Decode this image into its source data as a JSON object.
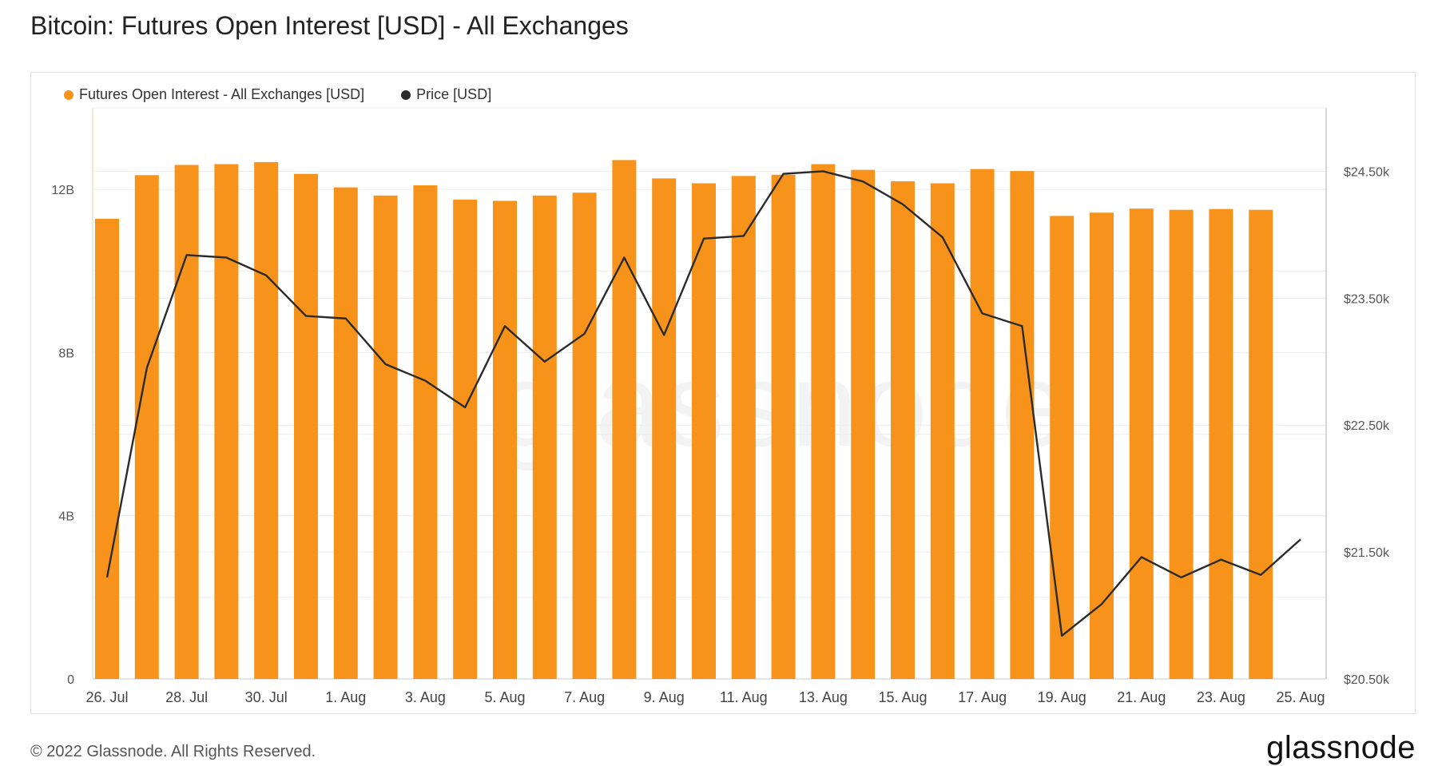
{
  "header": {
    "title": "Bitcoin: Futures Open Interest [USD] - All Exchanges"
  },
  "footer": {
    "copyright": "© 2022 Glassnode. All Rights Reserved.",
    "logo_text": "glassnode"
  },
  "watermark": "glassnode",
  "colors": {
    "bar": "#f7931a",
    "line": "#2b2b2b",
    "grid": "#ececec",
    "axis": "#c8c8c8"
  },
  "chart_data": {
    "type": "bar",
    "title": "Bitcoin: Futures Open Interest [USD] - All Exchanges",
    "legend_position": "top-left",
    "grid": true,
    "x": [
      "26 Jul",
      "27 Jul",
      "28 Jul",
      "29 Jul",
      "30 Jul",
      "31 Jul",
      "1 Aug",
      "2 Aug",
      "3 Aug",
      "4 Aug",
      "5 Aug",
      "6 Aug",
      "7 Aug",
      "8 Aug",
      "9 Aug",
      "10 Aug",
      "11 Aug",
      "12 Aug",
      "13 Aug",
      "14 Aug",
      "15 Aug",
      "16 Aug",
      "17 Aug",
      "18 Aug",
      "19 Aug",
      "20 Aug",
      "21 Aug",
      "22 Aug",
      "23 Aug",
      "24 Aug",
      "25 Aug"
    ],
    "x_tick_labels": [
      {
        "index": 0,
        "label": "26. Jul"
      },
      {
        "index": 2,
        "label": "28. Jul"
      },
      {
        "index": 4,
        "label": "30. Jul"
      },
      {
        "index": 6,
        "label": "1. Aug"
      },
      {
        "index": 8,
        "label": "3. Aug"
      },
      {
        "index": 10,
        "label": "5. Aug"
      },
      {
        "index": 12,
        "label": "7. Aug"
      },
      {
        "index": 14,
        "label": "9. Aug"
      },
      {
        "index": 16,
        "label": "11. Aug"
      },
      {
        "index": 18,
        "label": "13. Aug"
      },
      {
        "index": 20,
        "label": "15. Aug"
      },
      {
        "index": 22,
        "label": "17. Aug"
      },
      {
        "index": 24,
        "label": "19. Aug"
      },
      {
        "index": 26,
        "label": "21. Aug"
      },
      {
        "index": 28,
        "label": "23. Aug"
      },
      {
        "index": 30,
        "label": "25. Aug"
      }
    ],
    "y_left": {
      "ticks": [
        0,
        4,
        8,
        12
      ],
      "tick_labels": [
        "0",
        "4B",
        "8B",
        "12B"
      ],
      "range": [
        0,
        14
      ]
    },
    "y_right": {
      "ticks": [
        20500,
        21500,
        22500,
        23500,
        24500
      ],
      "tick_labels": [
        "$20.50k",
        "$21.50k",
        "$22.50k",
        "$23.50k",
        "$24.50k"
      ],
      "range": [
        20500,
        25000
      ]
    },
    "series": [
      {
        "name": "Futures Open Interest - All Exchanges [USD]",
        "type": "bar",
        "axis": "left",
        "color": "#f7931a",
        "values": [
          11.28,
          12.35,
          12.6,
          12.62,
          12.67,
          12.38,
          12.05,
          11.85,
          12.1,
          11.75,
          11.72,
          11.85,
          11.92,
          12.72,
          12.27,
          12.15,
          12.33,
          12.36,
          12.62,
          12.48,
          12.2,
          12.15,
          12.5,
          12.45,
          11.35,
          11.43,
          11.53,
          11.5,
          11.52,
          11.5,
          null
        ],
        "unit": "B USD"
      },
      {
        "name": "Price [USD]",
        "type": "line",
        "axis": "right",
        "color": "#2b2b2b",
        "values": [
          21300,
          22950,
          23840,
          23820,
          23680,
          23360,
          23340,
          22980,
          22850,
          22640,
          23280,
          23000,
          23220,
          23820,
          23210,
          23970,
          23990,
          24480,
          24500,
          24420,
          24240,
          23980,
          23380,
          23280,
          20840,
          21090,
          21460,
          21300,
          21440,
          21320,
          21600
        ]
      }
    ]
  }
}
